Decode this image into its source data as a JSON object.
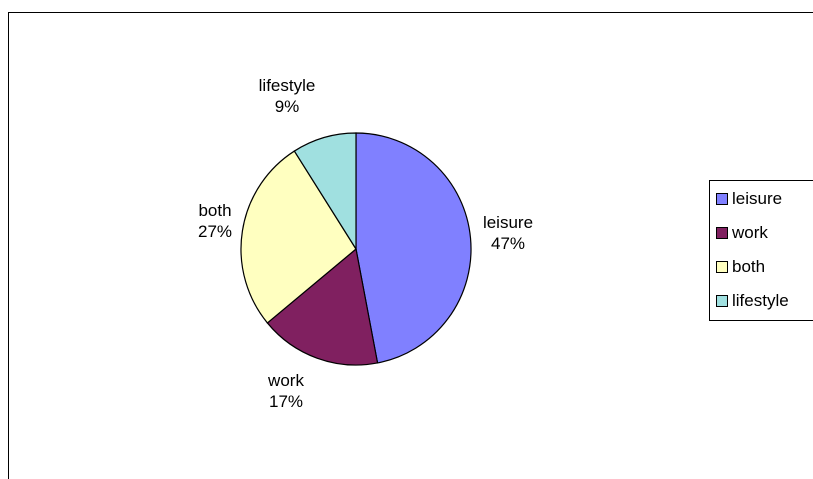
{
  "chart_data": {
    "type": "pie",
    "title": "",
    "legend_position": "right",
    "slices": [
      {
        "label": "leisure",
        "value": 47,
        "value_label": "47%",
        "color": "#8080ff"
      },
      {
        "label": "work",
        "value": 17,
        "value_label": "17%",
        "color": "#802060"
      },
      {
        "label": "both",
        "value": 27,
        "value_label": "27%",
        "color": "#ffffc0"
      },
      {
        "label": "lifestyle",
        "value": 9,
        "value_label": "9%",
        "color": "#a0e0e0"
      }
    ]
  }
}
